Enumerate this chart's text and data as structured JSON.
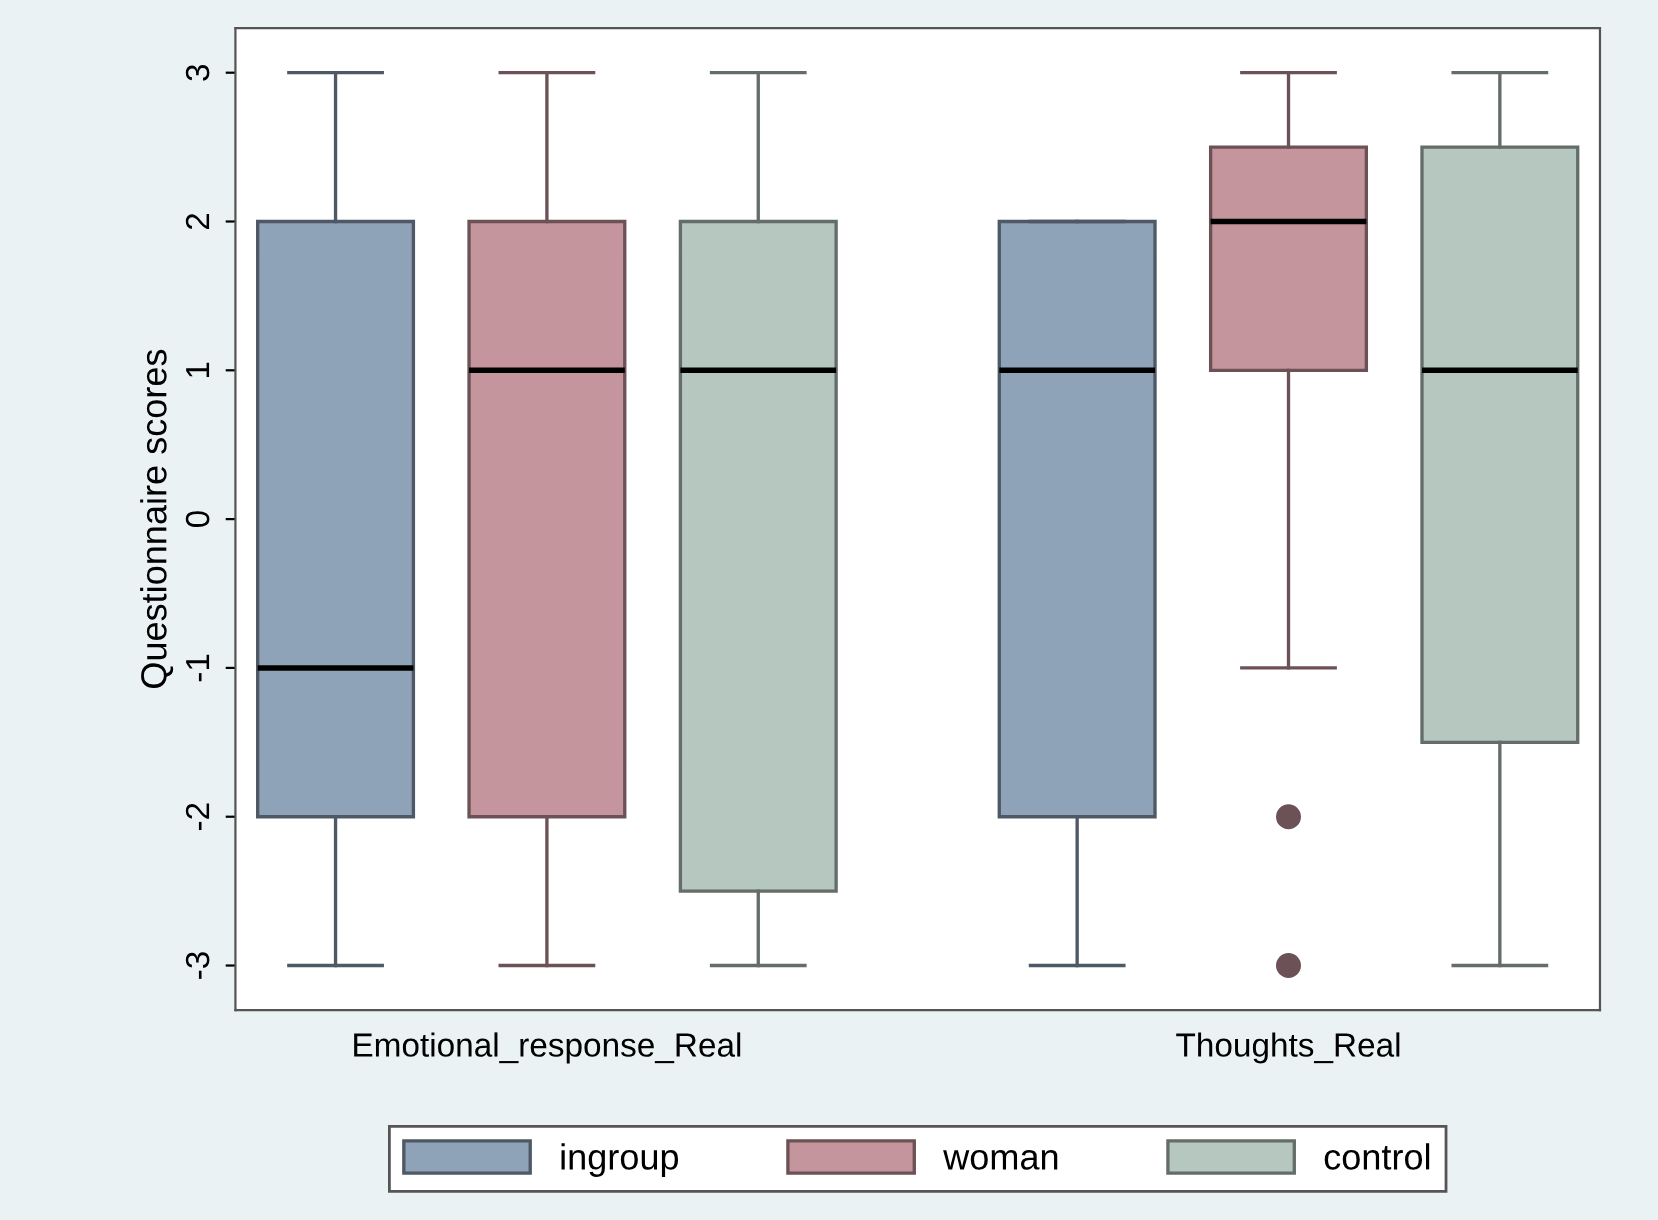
{
  "chart_data": {
    "type": "box",
    "ylabel": "Questionnaire scores",
    "categories": [
      "Emotional_response_Real",
      "Thoughts_Real"
    ],
    "ylim": [
      -3.3,
      3.3
    ],
    "yticks": [
      -3,
      -2,
      -1,
      0,
      1,
      2,
      3
    ],
    "grid": false,
    "legend": "bottom",
    "series": [
      {
        "name": "ingroup",
        "color": "#8ea2b8",
        "boxes": [
          {
            "low": -3,
            "q1": -2,
            "median": -1,
            "q3": 2,
            "high": 3
          },
          {
            "low": -3,
            "q1": -2,
            "median": 1,
            "q3": 2,
            "high": 2
          }
        ]
      },
      {
        "name": "woman",
        "color": "#c4959c",
        "boxes": [
          {
            "low": -3,
            "q1": -2,
            "median": 1,
            "q3": 2,
            "high": 3
          },
          {
            "low": -1,
            "q1": 1,
            "median": 2,
            "q3": 2.5,
            "high": 3,
            "outliers": [
              -2,
              -3
            ]
          }
        ]
      },
      {
        "name": "control",
        "color": "#b5c7bf",
        "boxes": [
          {
            "low": -3,
            "q1": -2.5,
            "median": 1,
            "q3": 2,
            "high": 3
          },
          {
            "low": -3,
            "q1": -1.5,
            "median": 1,
            "q3": 2.5,
            "high": 3
          }
        ]
      }
    ]
  }
}
